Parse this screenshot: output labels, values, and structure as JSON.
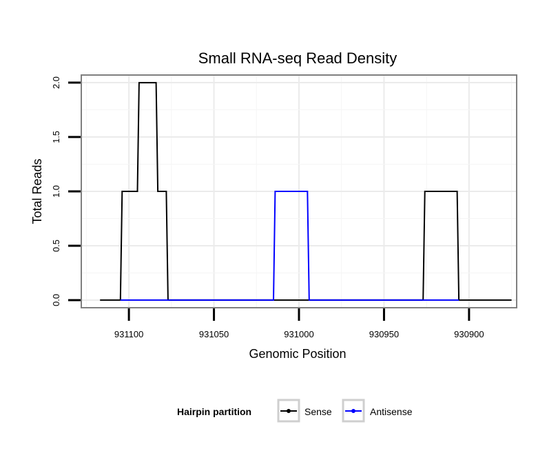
{
  "chart_data": {
    "type": "line",
    "title": "Small RNA-seq Read Density",
    "xlabel": "Genomic Position",
    "ylabel": "Total Reads",
    "x_reversed": true,
    "xlim": [
      931128,
      930872
    ],
    "ylim": [
      -0.07,
      2.07
    ],
    "x_ticks": [
      931100,
      931050,
      931000,
      930950,
      930900
    ],
    "x_tick_labels": [
      "931100",
      "931050",
      "931000",
      "930950",
      "930900"
    ],
    "y_ticks": [
      0.0,
      0.5,
      1.0,
      1.5,
      2.0
    ],
    "y_tick_labels": [
      "0.0",
      "0.5",
      "1.0",
      "1.5",
      "2.0"
    ],
    "grid": true,
    "series": [
      {
        "name": "Sense",
        "color": "#000000",
        "points": [
          [
            931117,
            0
          ],
          [
            931105,
            0
          ],
          [
            931104,
            1
          ],
          [
            931095,
            1
          ],
          [
            931094,
            2
          ],
          [
            931084,
            2
          ],
          [
            931083,
            1
          ],
          [
            931078,
            1
          ],
          [
            931077,
            0
          ],
          [
            930927,
            0
          ],
          [
            930926,
            1
          ],
          [
            930907,
            1
          ],
          [
            930906,
            0
          ],
          [
            930875,
            0
          ]
        ]
      },
      {
        "name": "Antisense",
        "color": "#0000ff",
        "points": [
          [
            931105,
            0
          ],
          [
            931077,
            0
          ],
          [
            931015,
            0
          ],
          [
            931014,
            1
          ],
          [
            930995,
            1
          ],
          [
            930994,
            0
          ],
          [
            930927,
            0
          ],
          [
            930906,
            0
          ]
        ]
      }
    ],
    "legend": {
      "title": "Hairpin partition",
      "position": "bottom",
      "entries": [
        "Sense",
        "Antisense"
      ]
    }
  }
}
